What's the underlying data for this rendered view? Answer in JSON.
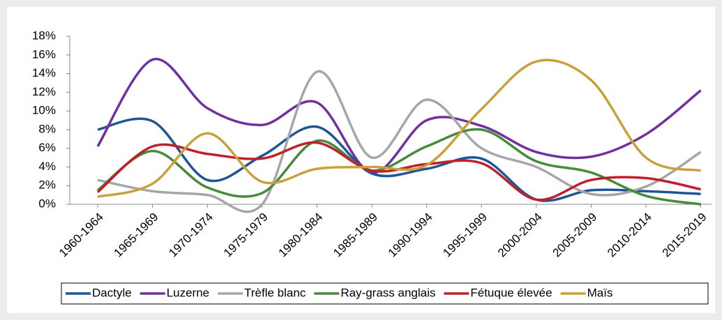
{
  "chart_data": {
    "type": "line",
    "categories": [
      "1960-1964",
      "1965-1969",
      "1970-1974",
      "1975-1979",
      "1980-1984",
      "1985-1989",
      "1990-1994",
      "1995-1999",
      "2000-2004",
      "2005-2009",
      "2010-2014",
      "2015-2019"
    ],
    "series": [
      {
        "name": "Dactyle",
        "color": "#1f5597",
        "values": [
          8.0,
          8.9,
          2.6,
          5.2,
          8.3,
          3.3,
          3.8,
          4.9,
          0.5,
          1.5,
          1.4,
          1.1
        ]
      },
      {
        "name": "Luzerne",
        "color": "#7030a0",
        "values": [
          6.2,
          15.5,
          10.3,
          8.5,
          10.9,
          3.4,
          9.0,
          8.4,
          5.6,
          5.1,
          7.5,
          12.2
        ]
      },
      {
        "name": "Trèfle blanc",
        "color": "#a6a6a6",
        "values": [
          2.6,
          1.4,
          1.0,
          0.0,
          14.2,
          5.0,
          11.2,
          6.0,
          4.0,
          1.1,
          1.9,
          5.6
        ]
      },
      {
        "name": "Ray-grass anglais",
        "color": "#468a3c",
        "values": [
          1.5,
          5.7,
          1.8,
          1.2,
          6.8,
          3.6,
          6.2,
          8.0,
          4.6,
          3.4,
          0.9,
          0.0
        ]
      },
      {
        "name": "Fétuque élevée",
        "color": "#c0202a",
        "values": [
          1.3,
          6.2,
          5.4,
          4.9,
          6.6,
          3.6,
          4.3,
          4.4,
          0.5,
          2.6,
          2.8,
          1.6
        ]
      },
      {
        "name": "Maïs",
        "color": "#c9a03a",
        "values": [
          0.8,
          2.2,
          7.6,
          2.4,
          3.8,
          4.0,
          4.2,
          10.2,
          15.3,
          13.3,
          5.0,
          3.6
        ]
      }
    ],
    "ylim": [
      0,
      18
    ],
    "yticks": [
      {
        "value": 0,
        "label": "0%"
      },
      {
        "value": 2,
        "label": "2%"
      },
      {
        "value": 4,
        "label": "4%"
      },
      {
        "value": 6,
        "label": "6%"
      },
      {
        "value": 8,
        "label": "8%"
      },
      {
        "value": 10,
        "label": "10%"
      },
      {
        "value": 12,
        "label": "12%"
      },
      {
        "value": 14,
        "label": "14%"
      },
      {
        "value": 16,
        "label": "16%"
      },
      {
        "value": 18,
        "label": "18%"
      }
    ],
    "grid": false,
    "legend": "bottom"
  }
}
